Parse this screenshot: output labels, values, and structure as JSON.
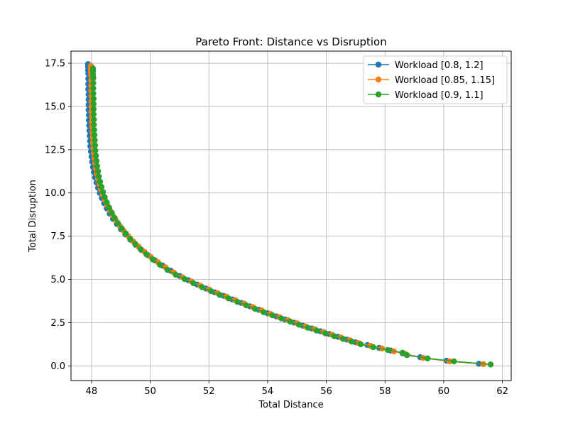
{
  "chart_data": {
    "type": "line",
    "title": "Pareto Front: Distance vs Disruption",
    "xlabel": "Total Distance",
    "ylabel": "Total Disruption",
    "xlim": [
      47.3,
      62.3
    ],
    "ylim": [
      -0.85,
      18.2
    ],
    "xticks": [
      48,
      50,
      52,
      54,
      56,
      58,
      60,
      62
    ],
    "yticks": [
      0.0,
      2.5,
      5.0,
      7.5,
      10.0,
      12.5,
      15.0,
      17.5
    ],
    "grid": true,
    "legend_position": "top-right",
    "series": [
      {
        "name": "Workload [0.8, 1.2]",
        "color": "#1f77b4",
        "x": [
          47.88,
          47.88,
          47.88,
          47.89,
          47.89,
          47.89,
          47.89,
          47.9,
          47.9,
          47.9,
          47.9,
          47.91,
          47.91,
          47.92,
          47.93,
          47.94,
          47.95,
          47.96,
          47.98,
          48.0,
          48.02,
          48.05,
          48.08,
          48.12,
          48.17,
          48.22,
          48.28,
          48.35,
          48.43,
          48.52,
          48.62,
          48.73,
          48.86,
          49.0,
          49.15,
          49.32,
          49.5,
          49.7,
          49.92,
          50.16,
          50.42,
          50.7,
          51.0,
          51.3,
          51.6,
          51.9,
          52.2,
          52.5,
          52.8,
          53.1,
          53.4,
          53.7,
          54.0,
          54.3,
          54.6,
          54.9,
          55.2,
          55.5,
          55.8,
          56.1,
          56.4,
          56.7,
          57.0,
          57.4,
          57.8,
          58.2,
          58.6,
          59.2,
          60.1,
          61.2
        ],
        "y": [
          17.45,
          17.3,
          17.1,
          16.9,
          16.6,
          16.3,
          16.0,
          15.7,
          15.4,
          15.1,
          14.8,
          14.5,
          14.2,
          13.9,
          13.6,
          13.3,
          13.0,
          12.7,
          12.4,
          12.1,
          11.8,
          11.5,
          11.2,
          10.9,
          10.6,
          10.3,
          10.0,
          9.7,
          9.4,
          9.1,
          8.8,
          8.5,
          8.2,
          7.9,
          7.6,
          7.3,
          7.0,
          6.7,
          6.4,
          6.1,
          5.8,
          5.5,
          5.2,
          4.95,
          4.7,
          4.47,
          4.25,
          4.05,
          3.84,
          3.64,
          3.44,
          3.24,
          3.04,
          2.86,
          2.68,
          2.5,
          2.32,
          2.16,
          2.0,
          1.84,
          1.68,
          1.52,
          1.36,
          1.2,
          1.04,
          0.88,
          0.72,
          0.5,
          0.3,
          0.12
        ]
      },
      {
        "name": "Workload [0.85, 1.15]",
        "color": "#ff7f0e",
        "x": [
          47.98,
          47.98,
          47.98,
          47.99,
          47.99,
          47.99,
          47.99,
          48.0,
          48.0,
          48.0,
          48.0,
          48.01,
          48.01,
          48.02,
          48.03,
          48.04,
          48.05,
          48.06,
          48.08,
          48.1,
          48.12,
          48.15,
          48.18,
          48.22,
          48.27,
          48.32,
          48.38,
          48.45,
          48.53,
          48.62,
          48.72,
          48.83,
          48.96,
          49.1,
          49.25,
          49.42,
          49.6,
          49.8,
          50.02,
          50.26,
          50.52,
          50.8,
          51.1,
          51.4,
          51.7,
          52.0,
          52.3,
          52.6,
          52.9,
          53.2,
          53.5,
          53.8,
          54.1,
          54.4,
          54.7,
          55.0,
          55.3,
          55.6,
          55.9,
          56.2,
          56.5,
          56.8,
          57.1,
          57.5,
          57.9,
          58.3,
          58.7,
          59.3,
          60.2,
          61.35
        ],
        "y": [
          17.35,
          17.2,
          17.0,
          16.8,
          16.5,
          16.2,
          15.9,
          15.6,
          15.3,
          15.0,
          14.7,
          14.4,
          14.1,
          13.8,
          13.5,
          13.2,
          12.9,
          12.6,
          12.3,
          12.0,
          11.7,
          11.4,
          11.1,
          10.8,
          10.5,
          10.2,
          9.9,
          9.6,
          9.3,
          9.0,
          8.7,
          8.4,
          8.1,
          7.8,
          7.5,
          7.2,
          6.9,
          6.6,
          6.3,
          6.0,
          5.7,
          5.4,
          5.12,
          4.88,
          4.64,
          4.42,
          4.2,
          4.0,
          3.8,
          3.6,
          3.4,
          3.2,
          3.0,
          2.82,
          2.64,
          2.46,
          2.28,
          2.12,
          1.96,
          1.8,
          1.64,
          1.48,
          1.32,
          1.16,
          1.0,
          0.84,
          0.68,
          0.46,
          0.26,
          0.1
        ]
      },
      {
        "name": "Workload [0.9, 1.1]",
        "color": "#2ca02c",
        "x": [
          48.05,
          48.05,
          48.05,
          48.06,
          48.06,
          48.06,
          48.06,
          48.07,
          48.07,
          48.07,
          48.07,
          48.08,
          48.08,
          48.09,
          48.1,
          48.11,
          48.12,
          48.13,
          48.15,
          48.17,
          48.19,
          48.22,
          48.25,
          48.29,
          48.34,
          48.39,
          48.45,
          48.52,
          48.6,
          48.69,
          48.79,
          48.9,
          49.03,
          49.17,
          49.32,
          49.49,
          49.67,
          49.87,
          50.09,
          50.33,
          50.59,
          50.87,
          51.17,
          51.47,
          51.77,
          52.07,
          52.37,
          52.67,
          52.97,
          53.27,
          53.57,
          53.87,
          54.17,
          54.47,
          54.77,
          55.07,
          55.37,
          55.67,
          55.97,
          56.27,
          56.57,
          56.87,
          57.17,
          57.6,
          58.1,
          58.6,
          58.75,
          59.45,
          60.35,
          61.6
        ],
        "y": [
          17.2,
          17.05,
          16.85,
          16.65,
          16.35,
          16.05,
          15.75,
          15.45,
          15.15,
          14.85,
          14.55,
          14.25,
          13.95,
          13.65,
          13.35,
          13.05,
          12.75,
          12.45,
          12.15,
          11.85,
          11.55,
          11.25,
          10.95,
          10.65,
          10.35,
          10.05,
          9.75,
          9.45,
          9.15,
          8.85,
          8.55,
          8.25,
          7.95,
          7.65,
          7.35,
          7.05,
          6.75,
          6.45,
          6.15,
          5.85,
          5.55,
          5.27,
          5.02,
          4.78,
          4.55,
          4.32,
          4.1,
          3.9,
          3.7,
          3.5,
          3.3,
          3.1,
          2.92,
          2.74,
          2.56,
          2.38,
          2.2,
          2.04,
          1.88,
          1.72,
          1.56,
          1.4,
          1.25,
          1.08,
          0.92,
          0.76,
          0.62,
          0.43,
          0.26,
          0.08
        ]
      }
    ]
  }
}
